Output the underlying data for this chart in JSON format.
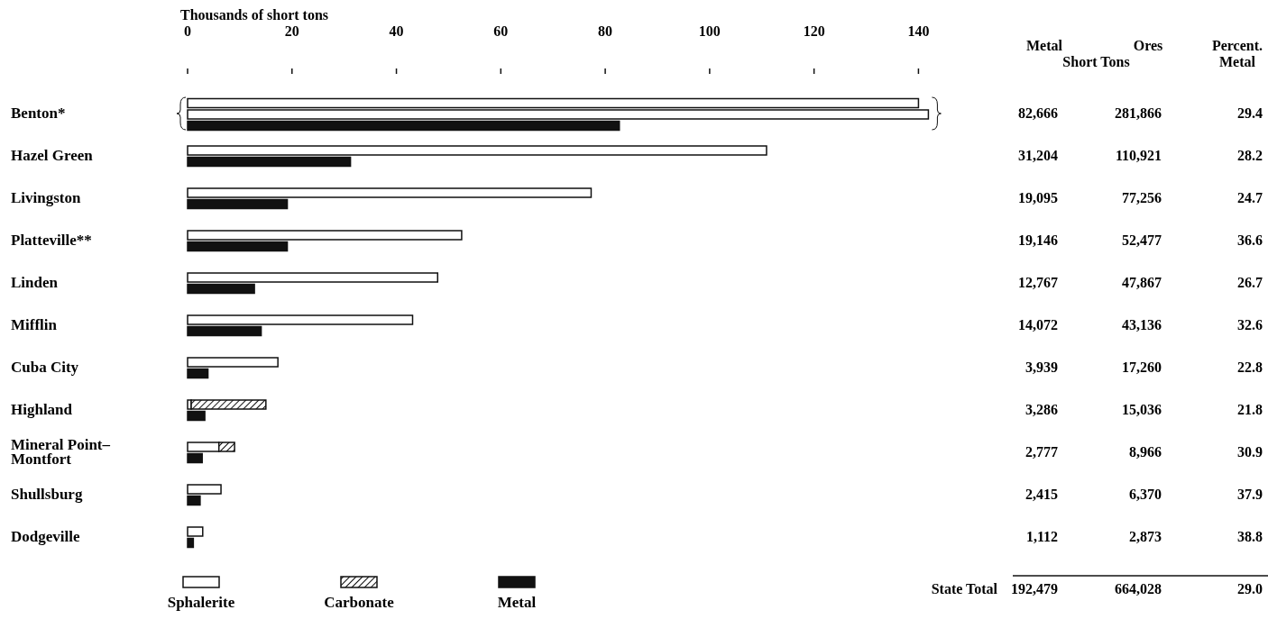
{
  "chart_data": [
    {
      "type": "bar",
      "orientation": "horizontal",
      "xlabel": "Thousands of short tons",
      "categories": [
        "Benton*",
        "Hazel Green",
        "Livingston",
        "Platteville**",
        "Linden",
        "Mifflin",
        "Cuba City",
        "Highland",
        "Mineral Point–Montfort",
        "Shullsburg",
        "Dodgeville"
      ],
      "series": [
        {
          "name": "Sphalerite",
          "color": "#ffffff",
          "values": [
            140,
            110.9,
            77.3,
            52.5,
            47.9,
            43.1,
            17.3,
            0.7,
            6,
            6.4,
            2.9
          ]
        },
        {
          "color": "#ffffff",
          "values": [
            141.9,
            null,
            null,
            null,
            null,
            null,
            null,
            null,
            null,
            null,
            null
          ]
        },
        {
          "name": "Carbonate",
          "color": "#111111",
          "base": [
            null,
            null,
            null,
            null,
            null,
            null,
            null,
            0.7,
            6,
            null,
            null
          ],
          "values": [
            null,
            null,
            null,
            null,
            null,
            null,
            null,
            14.3,
            3,
            null,
            null
          ]
        },
        {
          "name": "Metal",
          "color": "#111111",
          "values": [
            82.7,
            31.2,
            19.1,
            19.1,
            12.8,
            14.1,
            3.9,
            3.3,
            2.8,
            2.4,
            1.1
          ]
        }
      ],
      "xlim": [
        0,
        142
      ],
      "xticks": [
        0,
        20,
        40,
        60,
        80,
        100,
        120,
        140
      ],
      "legend": "bottom left"
    },
    {
      "type": "other",
      "categories": [
        "Metal",
        "Ores",
        "Percent. Metal"
      ],
      "subtitle": "Short Tons",
      "annotations": [
        "82,666",
        "281,866",
        "29.4",
        "31,204",
        "110,921",
        "28.2",
        "19,095",
        "77,256",
        "24.7",
        "19,146",
        "52,477",
        "36.6",
        "12,767",
        "47,867",
        "26.7",
        "14,072",
        "43,136",
        "32.6",
        "3,939",
        "17,260",
        "22.8",
        "3,286",
        "15,036",
        "21.8",
        "2,777",
        "8,966",
        "30.9",
        "2,415",
        "6,370",
        "37.9",
        "1,112",
        "2,873",
        "38.8",
        "State Total",
        "192,479",
        "664,028",
        "29.0"
      ]
    }
  ]
}
